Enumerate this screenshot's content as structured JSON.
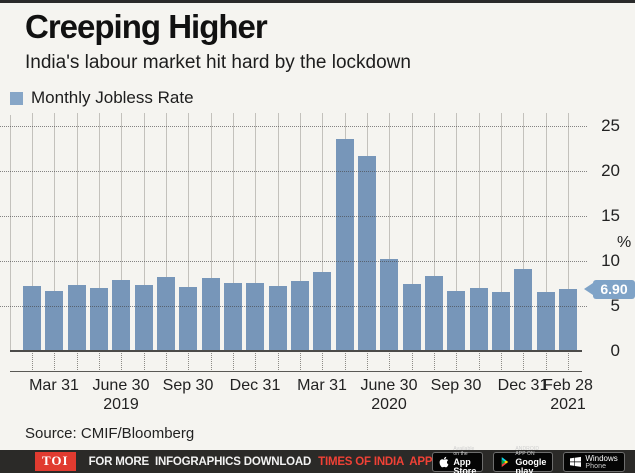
{
  "header": {
    "title": "Creeping Higher",
    "subtitle": "India's labour market hit hard by the lockdown"
  },
  "legend": {
    "label": "Monthly Jobless Rate",
    "swatch_color": "#87a6c7"
  },
  "chart_data": {
    "type": "bar",
    "title": "Creeping Higher",
    "subtitle": "India's labour market hit hard by the lockdown",
    "series_name": "Monthly Jobless Rate",
    "unit": "%",
    "x": [
      "Feb 2019",
      "Mar 2019",
      "Apr 2019",
      "May 2019",
      "Jun 2019",
      "Jul 2019",
      "Aug 2019",
      "Sep 2019",
      "Oct 2019",
      "Nov 2019",
      "Dec 2019",
      "Jan 2020",
      "Feb 2020",
      "Mar 2020",
      "Apr 2020",
      "May 2020",
      "Jun 2020",
      "Jul 2020",
      "Aug 2020",
      "Sep 2020",
      "Oct 2020",
      "Nov 2020",
      "Dec 2020",
      "Jan 2021",
      "Feb 2021"
    ],
    "values": [
      7.2,
      6.7,
      7.3,
      7.0,
      7.9,
      7.3,
      8.2,
      7.1,
      8.1,
      7.5,
      7.6,
      7.2,
      7.8,
      8.8,
      23.5,
      21.7,
      10.2,
      7.4,
      8.3,
      6.7,
      7.0,
      6.5,
      9.1,
      6.5,
      6.9
    ],
    "bar_color": "#7796b9",
    "y_ticks": [
      0,
      5,
      10,
      15,
      20,
      25
    ],
    "ylim": [
      0,
      26.4
    ],
    "y_axis_side": "right",
    "y_axis_unit_label": "%",
    "grid": "vertical solid line per bar; dotted horizontal line every 5",
    "x_ticks": [
      {
        "index": 1,
        "label": "Mar 31"
      },
      {
        "index": 4,
        "label": "June 30",
        "sub": "2019"
      },
      {
        "index": 7,
        "label": "Sep 30"
      },
      {
        "index": 10,
        "label": "Dec 31"
      },
      {
        "index": 13,
        "label": "Mar 31"
      },
      {
        "index": 16,
        "label": "June 30",
        "sub": "2020"
      },
      {
        "index": 19,
        "label": "Sep 30"
      },
      {
        "index": 22,
        "label": "Dec 31"
      },
      {
        "index": 24,
        "label": "Feb 28",
        "sub": "2021"
      }
    ],
    "last_value_tag": "6.90",
    "tag_color": "#7fa3c7"
  },
  "source": {
    "text": "Source: CMIF/Bloomberg"
  },
  "footer": {
    "logo": "TOI",
    "promo_white": "FOR MORE  INFOGRAPHICS DOWNLOAD",
    "promo_red": "TIMES OF INDIA  APP",
    "badges": {
      "app_store": {
        "line1": "Available on the",
        "line2": "App Store"
      },
      "google_play": {
        "line1": "ANDROID APP ON",
        "line2": "Google play"
      },
      "windows": {
        "line1": "Windows",
        "line2": "Phone"
      }
    }
  }
}
